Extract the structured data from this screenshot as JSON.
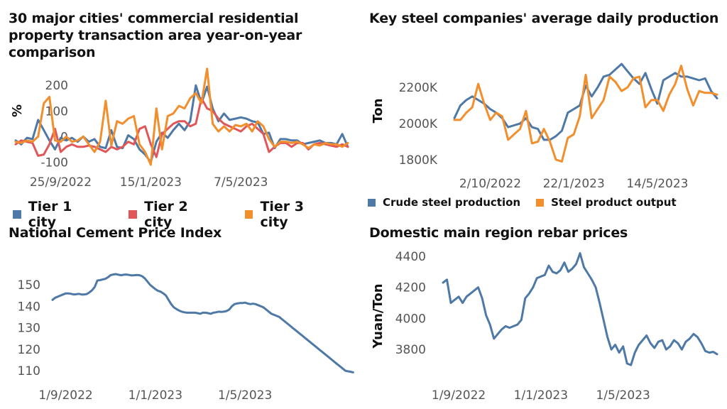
{
  "colors": {
    "blue": "#4e79a7",
    "red": "#e15759",
    "orange": "#f28e2b"
  },
  "chart_data": [
    {
      "id": "property",
      "type": "line",
      "title": "30 major cities' commercial residential property transaction area year-on-year comparison",
      "ylabel": "%",
      "xlabel": "",
      "ylim": [
        -110,
        270
      ],
      "yticks": [
        200,
        100,
        0,
        -100
      ],
      "xtick_labels": [
        "25/9/2022",
        "15/1/2023",
        "7/5/2023"
      ],
      "xtick_index": [
        8,
        24,
        40
      ],
      "n_points": 60,
      "legend": "bottom",
      "series": [
        {
          "name": "Tier 1 city",
          "color": "#4e79a7",
          "values": [
            -15,
            -30,
            -5,
            -10,
            65,
            25,
            -15,
            -50,
            -5,
            -15,
            -5,
            -20,
            0,
            -20,
            -10,
            -40,
            -45,
            25,
            -40,
            -45,
            5,
            -10,
            -50,
            -70,
            -100,
            -20,
            15,
            -5,
            25,
            50,
            25,
            60,
            200,
            130,
            195,
            110,
            60,
            90,
            65,
            70,
            75,
            70,
            60,
            55,
            10,
            15,
            -45,
            -10,
            -10,
            -15,
            -15,
            -30,
            -25,
            -20,
            -15,
            -25,
            -25,
            -30,
            10,
            -40
          ]
        },
        {
          "name": "Tier 2 city",
          "color": "#e15759",
          "values": [
            -30,
            -15,
            -20,
            -25,
            -75,
            -70,
            -30,
            30,
            -60,
            -40,
            -30,
            -40,
            -40,
            -35,
            -40,
            -50,
            -60,
            -40,
            -50,
            -40,
            -20,
            -30,
            30,
            40,
            -30,
            -80,
            10,
            30,
            50,
            60,
            60,
            40,
            50,
            150,
            110,
            100,
            70,
            50,
            40,
            30,
            20,
            40,
            50,
            30,
            10,
            -60,
            -40,
            -25,
            -25,
            -40,
            -25,
            -25,
            -50,
            -30,
            -25,
            -30,
            -35,
            -40,
            -30,
            -40
          ]
        },
        {
          "name": "Tier 3 city",
          "color": "#f28e2b",
          "values": [
            -20,
            -25,
            -15,
            -20,
            0,
            130,
            155,
            -15,
            -20,
            0,
            -20,
            -15,
            0,
            -30,
            -60,
            -20,
            140,
            -35,
            60,
            50,
            70,
            80,
            -30,
            -60,
            -110,
            110,
            -50,
            80,
            90,
            120,
            110,
            150,
            170,
            130,
            265,
            50,
            20,
            40,
            20,
            45,
            40,
            50,
            20,
            60,
            40,
            -10,
            -40,
            -20,
            -20,
            -25,
            -20,
            -30,
            -45,
            -30,
            -35,
            -25,
            -30,
            -30,
            -40,
            -25
          ]
        }
      ]
    },
    {
      "id": "steel",
      "type": "line",
      "title": "Key steel companies' average daily production",
      "ylabel": "Ton",
      "xlabel": "",
      "ylim": [
        1760,
        2350
      ],
      "yticks": [
        2200,
        2000,
        1800
      ],
      "ytick_labels": [
        "2200K",
        "2000K",
        "1800K"
      ],
      "xtick_labels": [
        "2/10/2022",
        "22/1/2023",
        "14/5/2023"
      ],
      "xtick_index": [
        6,
        20,
        34
      ],
      "n_points": 45,
      "legend": "bottom",
      "series": [
        {
          "name": "Crude steel production",
          "color": "#4e79a7",
          "values": [
            2030,
            2100,
            2130,
            2150,
            2130,
            2110,
            2080,
            2060,
            2030,
            1980,
            1990,
            2000,
            2030,
            1980,
            1970,
            1910,
            1910,
            1930,
            1960,
            2060,
            2080,
            2100,
            2210,
            2150,
            2200,
            2260,
            2270,
            2300,
            2330,
            2290,
            2250,
            2220,
            2280,
            2190,
            2110,
            2240,
            2260,
            2280,
            2260,
            2260,
            2250,
            2240,
            2250,
            2180,
            2140
          ]
        },
        {
          "name": "Steel product output",
          "color": "#f28e2b",
          "values": [
            2020,
            2020,
            2060,
            2090,
            2220,
            2110,
            2020,
            2060,
            2040,
            1910,
            1940,
            1970,
            2070,
            1890,
            1900,
            1970,
            1900,
            1800,
            1790,
            1920,
            1940,
            2040,
            2270,
            2030,
            2080,
            2130,
            2260,
            2230,
            2180,
            2200,
            2250,
            2260,
            2090,
            2130,
            2130,
            2070,
            2160,
            2220,
            2320,
            2190,
            2100,
            2180,
            2170,
            2170,
            2160
          ]
        }
      ]
    },
    {
      "id": "cement",
      "type": "line",
      "title": "National Cement Price Index",
      "ylabel": "",
      "xlabel": "",
      "ylim": [
        108,
        157
      ],
      "yticks": [
        150,
        140,
        130,
        120,
        110
      ],
      "xtick_labels": [
        "1/9/2022",
        "1/1/2023",
        "1/5/2023"
      ],
      "xtick_index": [
        5,
        39,
        73
      ],
      "n_points": 113,
      "legend": "none",
      "series": [
        {
          "name": "",
          "color": "#4e79a7",
          "values": [
            143,
            144,
            144.5,
            145,
            145.5,
            146,
            146,
            145.8,
            145.5,
            145.6,
            145.8,
            145.5,
            145.5,
            145.7,
            146.5,
            147.5,
            149,
            152,
            152.2,
            152.5,
            152.8,
            153.5,
            154.5,
            154.8,
            155,
            154.7,
            154.5,
            154.7,
            154.8,
            154.6,
            154.4,
            154.5,
            154.6,
            154.5,
            154,
            153,
            151.5,
            150,
            149,
            148,
            147.2,
            146.8,
            146,
            145,
            143,
            141,
            139.5,
            138.7,
            138,
            137.5,
            137.2,
            137,
            137,
            137,
            137,
            136.8,
            136.5,
            137,
            137,
            136.8,
            136.5,
            137,
            137.2,
            137.5,
            137.4,
            137.5,
            137.8,
            138.5,
            140,
            141,
            141.3,
            141.5,
            141.5,
            141.7,
            141.3,
            141,
            141.2,
            141,
            140.5,
            140,
            139.5,
            138.5,
            137.5,
            136.5,
            136,
            135.5,
            135,
            134,
            133,
            132,
            131,
            130,
            129,
            128,
            127,
            126,
            125,
            124,
            123,
            122,
            121,
            120,
            119,
            118,
            117,
            116,
            115,
            114,
            113,
            112,
            111,
            110,
            109.7,
            109.5,
            109.2
          ]
        }
      ]
    },
    {
      "id": "rebar",
      "type": "line",
      "title": "Domestic main region rebar prices",
      "ylabel": "Yuan/Ton",
      "xlabel": "",
      "ylim": [
        3650,
        4450
      ],
      "yticks": [
        4400,
        4200,
        4000,
        3800
      ],
      "xtick_labels": [
        "1/9/2022",
        "1/1/2023",
        "1/5/2023"
      ],
      "xtick_index": [
        4,
        25,
        46
      ],
      "n_points": 71,
      "legend": "none",
      "series": [
        {
          "name": "",
          "color": "#4e79a7",
          "values": [
            4230,
            4250,
            4100,
            4120,
            4140,
            4100,
            4140,
            4160,
            4180,
            4200,
            4130,
            4020,
            3960,
            3870,
            3900,
            3930,
            3950,
            3940,
            3950,
            3960,
            3990,
            4130,
            4160,
            4200,
            4260,
            4270,
            4280,
            4340,
            4300,
            4290,
            4310,
            4360,
            4300,
            4320,
            4350,
            4420,
            4330,
            4290,
            4250,
            4200,
            4100,
            3990,
            3880,
            3800,
            3830,
            3780,
            3820,
            3710,
            3700,
            3780,
            3830,
            3860,
            3890,
            3840,
            3810,
            3850,
            3860,
            3800,
            3820,
            3860,
            3840,
            3800,
            3850,
            3870,
            3900,
            3880,
            3840,
            3790,
            3780,
            3785,
            3770
          ]
        }
      ]
    }
  ]
}
